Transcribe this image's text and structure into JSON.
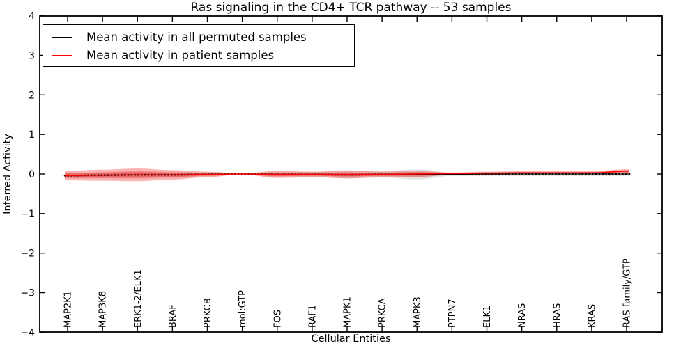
{
  "chart_data": {
    "type": "line",
    "title": "Ras signaling in the CD4+ TCR pathway -- 53 samples",
    "xlabel": "Cellular Entities",
    "ylabel": "Inferred Activity",
    "ylim": [
      -4,
      4
    ],
    "yticks": [
      4,
      3,
      2,
      1,
      0,
      -1,
      -2,
      -3,
      -4
    ],
    "grid": false,
    "legend_position": "upper left",
    "x_tick_rotation": "vertical",
    "categories": [
      "MAP2K1",
      "MAP3K8",
      "ERK1-2/ELK1",
      "BRAF",
      "PRKCB",
      "mol:GTP",
      "FOS",
      "RAF1",
      "MAPK1",
      "PRKCA",
      "MAPK3",
      "PTPN7",
      "ELK1",
      "NRAS",
      "HRAS",
      "KRAS",
      "RAS family/GTP"
    ],
    "series": [
      {
        "name": "Mean activity in all permuted samples",
        "color": "#000000",
        "style": "solid line with dense small square markers",
        "band_color": "#888888",
        "values": [
          -0.04,
          -0.03,
          -0.02,
          -0.02,
          -0.01,
          0.0,
          -0.01,
          -0.01,
          -0.02,
          -0.01,
          -0.01,
          -0.01,
          0.0,
          0.0,
          0.0,
          0.0,
          0.0
        ],
        "band": [
          0.07,
          0.08,
          0.1,
          0.08,
          0.05,
          0.01,
          0.07,
          0.06,
          0.09,
          0.08,
          0.13,
          0.04,
          0.05,
          0.05,
          0.05,
          0.05,
          0.05
        ]
      },
      {
        "name": "Mean activity in patient samples",
        "color": "#ff0000",
        "style": "solid line",
        "band_color": "#ff0000",
        "values": [
          -0.04,
          -0.03,
          -0.02,
          -0.02,
          -0.01,
          0.0,
          -0.01,
          -0.01,
          -0.01,
          -0.01,
          0.0,
          0.01,
          0.02,
          0.03,
          0.03,
          0.03,
          0.07
        ],
        "band": [
          0.12,
          0.14,
          0.16,
          0.12,
          0.07,
          0.01,
          0.09,
          0.07,
          0.1,
          0.07,
          0.08,
          0.03,
          0.04,
          0.04,
          0.04,
          0.04,
          0.05
        ]
      }
    ],
    "band_note": "translucent shaded bands around each mean line; both bands pinch to ~0 width at mol:GTP and PTPN7, red band widest at ERK1-2/ELK1, red mean rises slightly above 0 from ELK1 to RAS family/GTP"
  },
  "colors": {
    "background": "#ffffff",
    "axis": "#000000",
    "permuted_line": "#000000",
    "patient_line": "#ff0000",
    "permuted_band": "#888888",
    "patient_band": "#ff0000"
  }
}
